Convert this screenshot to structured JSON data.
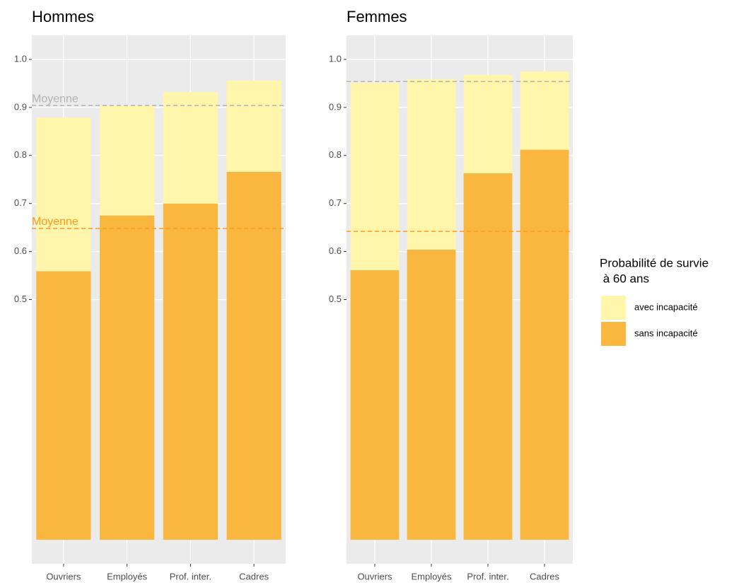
{
  "chart_data": [
    {
      "type": "stacked-bar",
      "title": "Hommes",
      "categories": [
        "Ouvriers",
        "Employés",
        "Prof. inter.",
        "Cadres"
      ],
      "series": [
        {
          "name": "sans incapacité",
          "color": "#f9b73f",
          "values": [
            0.559,
            0.675,
            0.7,
            0.766
          ]
        },
        {
          "name": "avec incapacité",
          "color": "#fff5ab",
          "values": [
            0.32,
            0.229,
            0.232,
            0.19
          ]
        }
      ],
      "ylim": [
        -0.05,
        1.05
      ],
      "yticks": [
        0.5,
        0.6,
        0.7,
        0.8,
        0.9,
        {
          "value": 1.0,
          "label": "1.0"
        }
      ],
      "grid": true,
      "hlines": [
        {
          "value": 0.904,
          "color": "#b3b3b3",
          "label": "Moyenne"
        },
        {
          "value": 0.648,
          "color": "#ff9a1f",
          "label": "Moyenne"
        }
      ]
    },
    {
      "type": "stacked-bar",
      "title": "Femmes",
      "categories": [
        "Ouvriers",
        "Employés",
        "Prof. inter.",
        "Cadres"
      ],
      "series": [
        {
          "name": "sans incapacité",
          "color": "#f9b73f",
          "values": [
            0.561,
            0.604,
            0.763,
            0.812
          ]
        },
        {
          "name": "avec incapacité",
          "color": "#fff5ab",
          "values": [
            0.39,
            0.355,
            0.205,
            0.163
          ]
        }
      ],
      "ylim": [
        -0.05,
        1.05
      ],
      "yticks": [
        0.5,
        0.6,
        0.7,
        0.8,
        0.9,
        {
          "value": 1.0,
          "label": "1.0"
        }
      ],
      "grid": true,
      "hlines": [
        {
          "value": 0.954,
          "color": "#b3b3b3"
        },
        {
          "value": 0.642,
          "color": "#ff9a1f"
        }
      ],
      "legend_title": [
        "Probabilité de survie",
        " à 60 ans"
      ]
    }
  ]
}
